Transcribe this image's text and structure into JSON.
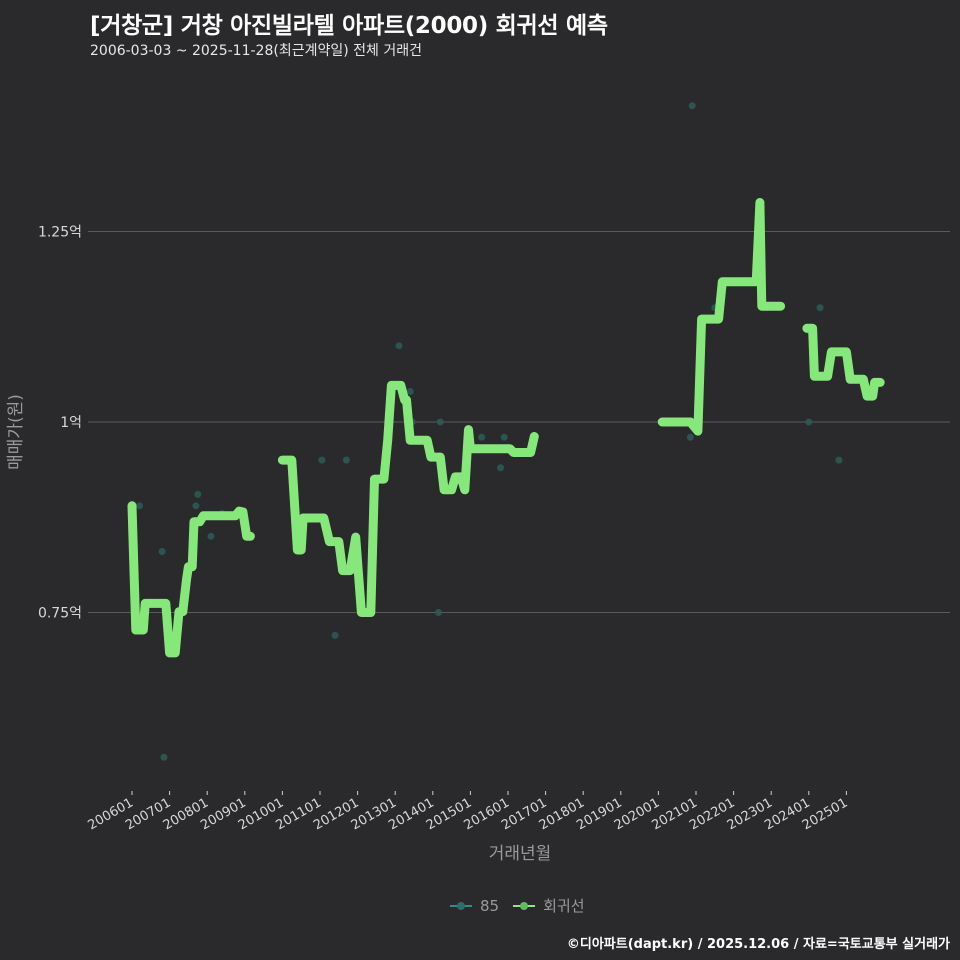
{
  "header": {
    "title": "[거창군] 거창 아진빌라텔 아파트(2000) 회귀선 예측",
    "subtitle": "2006-03-03 ~ 2025-11-28(최근계약일) 전체 거래건"
  },
  "footer": {
    "credit": "©디아파트(dapt.kr) / 2025.12.06 / 자료=국토교통부 실거래가"
  },
  "legend": {
    "items": [
      {
        "label": "85",
        "color": "#2a6f6a",
        "line_color": "#2f8f88"
      },
      {
        "label": "회귀선",
        "color": "#5fbf5f",
        "line_color": "#8aea7a"
      }
    ]
  },
  "colors": {
    "background": "#2a292b",
    "grid": "#5a5a5a",
    "regression": "#86e87a",
    "scatter": "#2b5a55"
  },
  "chart_data": {
    "type": "line",
    "title": "[거창군] 거창 아진빌라텔 아파트(2000) 회귀선 예측",
    "subtitle": "2006-03-03 ~ 2025-11-28(최근계약일) 전체 거래건",
    "xlabel": "거래년월",
    "ylabel": "매매가(원)",
    "ylim": [
      0.535,
      1.445
    ],
    "yticks": [
      {
        "value": 0.75,
        "label": "0.75억"
      },
      {
        "value": 1.0,
        "label": "1억"
      },
      {
        "value": 1.25,
        "label": "1.25억"
      }
    ],
    "xticks": [
      "200601",
      "200701",
      "200801",
      "200901",
      "201001",
      "201101",
      "201201",
      "201301",
      "201401",
      "201501",
      "201601",
      "201701",
      "201801",
      "201901",
      "202001",
      "202101",
      "202201",
      "202301",
      "202401",
      "202501"
    ],
    "grid": "horizontal",
    "legend_position": "bottom",
    "series": [
      {
        "name": "85",
        "type": "scatter",
        "points": [
          {
            "x": 2006.2,
            "y": 0.89
          },
          {
            "x": 2006.8,
            "y": 0.83
          },
          {
            "x": 2006.85,
            "y": 0.56
          },
          {
            "x": 2007.7,
            "y": 0.89
          },
          {
            "x": 2007.75,
            "y": 0.905
          },
          {
            "x": 2008.1,
            "y": 0.85
          },
          {
            "x": 2008.4,
            "y": 0.88
          },
          {
            "x": 2009.1,
            "y": 0.85
          },
          {
            "x": 2011.05,
            "y": 0.95
          },
          {
            "x": 2011.4,
            "y": 0.72
          },
          {
            "x": 2011.7,
            "y": 0.95
          },
          {
            "x": 2012.2,
            "y": 0.75
          },
          {
            "x": 2013.1,
            "y": 1.1
          },
          {
            "x": 2013.4,
            "y": 1.04
          },
          {
            "x": 2013.45,
            "y": 1.0
          },
          {
            "x": 2014.2,
            "y": 1.0
          },
          {
            "x": 2014.15,
            "y": 0.75
          },
          {
            "x": 2015.3,
            "y": 0.98
          },
          {
            "x": 2015.8,
            "y": 0.94
          },
          {
            "x": 2015.9,
            "y": 0.98
          },
          {
            "x": 2020.9,
            "y": 1.415
          },
          {
            "x": 2020.85,
            "y": 0.98
          },
          {
            "x": 2021.5,
            "y": 1.15
          },
          {
            "x": 2024.0,
            "y": 1.12
          },
          {
            "x": 2024.0,
            "y": 1.0
          },
          {
            "x": 2024.3,
            "y": 1.15
          },
          {
            "x": 2024.8,
            "y": 0.95
          }
        ]
      },
      {
        "name": "회귀선",
        "type": "step-line",
        "segments": [
          [
            [
              2006.0,
              0.89
            ],
            [
              2006.1,
              0.727
            ],
            [
              2006.3,
              0.727
            ],
            [
              2006.35,
              0.762
            ],
            [
              2006.9,
              0.762
            ],
            [
              2007.0,
              0.697
            ],
            [
              2007.15,
              0.697
            ],
            [
              2007.25,
              0.751
            ],
            [
              2007.35,
              0.751
            ],
            [
              2007.45,
              0.793
            ],
            [
              2007.5,
              0.81
            ],
            [
              2007.6,
              0.81
            ],
            [
              2007.65,
              0.869
            ],
            [
              2007.8,
              0.869
            ],
            [
              2007.9,
              0.877
            ],
            [
              2008.75,
              0.877
            ],
            [
              2008.85,
              0.883
            ],
            [
              2008.95,
              0.882
            ],
            [
              2009.05,
              0.85
            ],
            [
              2009.15,
              0.85
            ]
          ],
          [
            [
              2010.0,
              0.95
            ],
            [
              2010.25,
              0.95
            ],
            [
              2010.4,
              0.832
            ],
            [
              2010.5,
              0.832
            ],
            [
              2010.55,
              0.874
            ],
            [
              2011.1,
              0.874
            ],
            [
              2011.25,
              0.843
            ],
            [
              2011.5,
              0.843
            ],
            [
              2011.6,
              0.805
            ],
            [
              2011.8,
              0.805
            ],
            [
              2011.95,
              0.849
            ],
            [
              2012.1,
              0.75
            ],
            [
              2012.35,
              0.75
            ],
            [
              2012.45,
              0.925
            ],
            [
              2012.7,
              0.925
            ],
            [
              2012.8,
              0.976
            ],
            [
              2012.9,
              1.048
            ],
            [
              2013.15,
              1.048
            ],
            [
              2013.25,
              1.029
            ],
            [
              2013.3,
              1.029
            ],
            [
              2013.4,
              0.976
            ],
            [
              2013.45,
              0.976
            ],
            [
              2013.85,
              0.976
            ],
            [
              2013.95,
              0.954
            ],
            [
              2014.2,
              0.954
            ],
            [
              2014.3,
              0.911
            ],
            [
              2014.5,
              0.911
            ],
            [
              2014.6,
              0.928
            ],
            [
              2014.75,
              0.928
            ],
            [
              2014.85,
              0.911
            ],
            [
              2014.95,
              0.99
            ],
            [
              2015.0,
              0.965
            ],
            [
              2016.05,
              0.965
            ],
            [
              2016.15,
              0.96
            ],
            [
              2016.6,
              0.96
            ],
            [
              2016.7,
              0.981
            ]
          ],
          [
            [
              2020.1,
              1.0
            ],
            [
              2020.85,
              1.0
            ],
            [
              2021.05,
              0.988
            ],
            [
              2021.15,
              1.135
            ],
            [
              2021.6,
              1.135
            ],
            [
              2021.7,
              1.184
            ],
            [
              2022.6,
              1.184
            ],
            [
              2022.7,
              1.288
            ],
            [
              2022.75,
              1.152
            ],
            [
              2023.25,
              1.152
            ]
          ],
          [
            [
              2023.95,
              1.123
            ],
            [
              2024.1,
              1.123
            ],
            [
              2024.15,
              1.06
            ],
            [
              2024.5,
              1.06
            ],
            [
              2024.6,
              1.092
            ],
            [
              2025.0,
              1.092
            ],
            [
              2025.1,
              1.056
            ],
            [
              2025.45,
              1.056
            ],
            [
              2025.55,
              1.034
            ],
            [
              2025.7,
              1.034
            ],
            [
              2025.75,
              1.052
            ],
            [
              2025.9,
              1.052
            ]
          ]
        ]
      }
    ]
  }
}
